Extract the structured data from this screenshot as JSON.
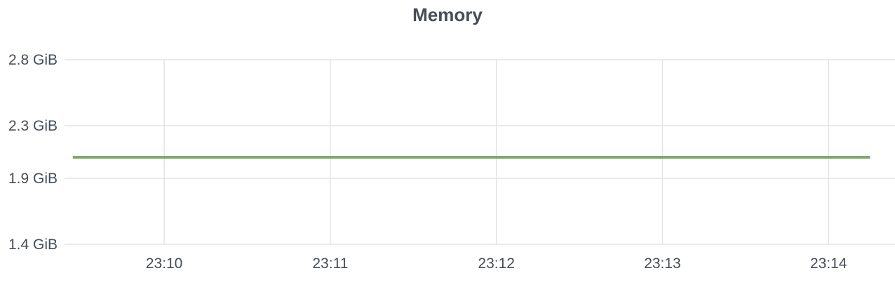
{
  "panel": {
    "title": "Memory"
  },
  "chart_data": {
    "type": "line",
    "title": "Memory",
    "xlabel": "",
    "ylabel": "",
    "ylim": [
      1.4,
      2.8
    ],
    "y_ticks": [
      {
        "value": 2.8,
        "label": "2.8 GiB"
      },
      {
        "value": 2.3,
        "label": "2.3 GiB"
      },
      {
        "value": 1.9,
        "label": "1.9 GiB"
      },
      {
        "value": 1.4,
        "label": "1.4 GiB"
      }
    ],
    "xlim": [
      9.4,
      14.4
    ],
    "x_ticks": [
      {
        "value": 10,
        "label": "23:10"
      },
      {
        "value": 11,
        "label": "23:11"
      },
      {
        "value": 12,
        "label": "23:12"
      },
      {
        "value": 13,
        "label": "23:13"
      },
      {
        "value": 14,
        "label": "23:14"
      }
    ],
    "grid": true,
    "series": [
      {
        "name": "Memory",
        "color": "#7ea96b",
        "x": [
          9.45,
          10,
          11,
          12,
          13,
          14,
          14.25
        ],
        "values": [
          2.06,
          2.06,
          2.06,
          2.06,
          2.06,
          2.06,
          2.06
        ]
      }
    ]
  }
}
